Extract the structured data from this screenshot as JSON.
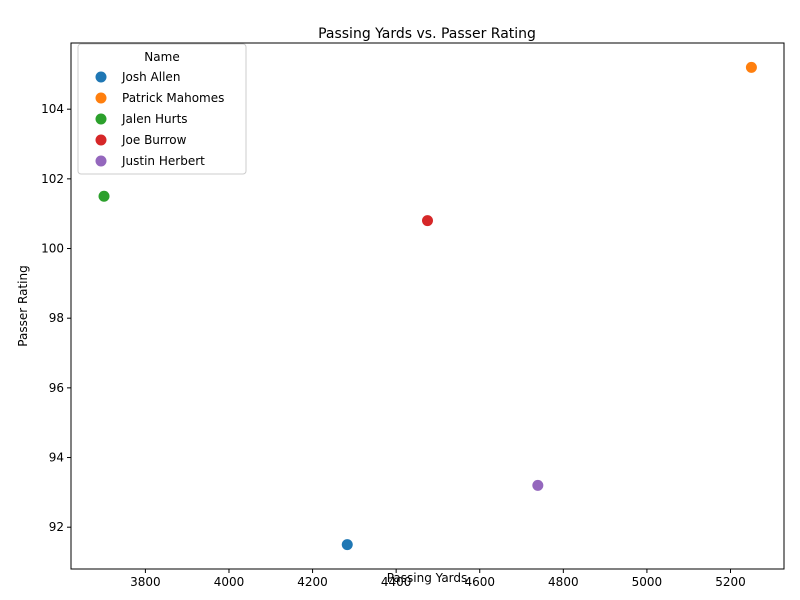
{
  "chart_data": {
    "type": "scatter",
    "title": "Passing Yards vs. Passer Rating",
    "xlabel": "Passing Yards",
    "ylabel": "Passer Rating",
    "xlim": [
      3622,
      5328
    ],
    "ylim": [
      90.8,
      105.9
    ],
    "xticks": [
      3800,
      4000,
      4200,
      4400,
      4600,
      4800,
      5000,
      5200
    ],
    "yticks": [
      92,
      94,
      96,
      98,
      100,
      102,
      104
    ],
    "grid": false,
    "legend": {
      "title": "Name",
      "placement": "top-left"
    },
    "series": [
      {
        "name": "Josh Allen",
        "color": "#1f77b4",
        "x": [
          4283
        ],
        "y": [
          91.5
        ]
      },
      {
        "name": "Patrick Mahomes",
        "color": "#ff7f0e",
        "x": [
          5250
        ],
        "y": [
          105.2
        ]
      },
      {
        "name": "Jalen Hurts",
        "color": "#2ca02c",
        "x": [
          3701
        ],
        "y": [
          101.5
        ]
      },
      {
        "name": "Joe Burrow",
        "color": "#d62728",
        "x": [
          4475
        ],
        "y": [
          100.8
        ]
      },
      {
        "name": "Justin Herbert",
        "color": "#9467bd",
        "x": [
          4739
        ],
        "y": [
          93.2
        ]
      }
    ]
  }
}
